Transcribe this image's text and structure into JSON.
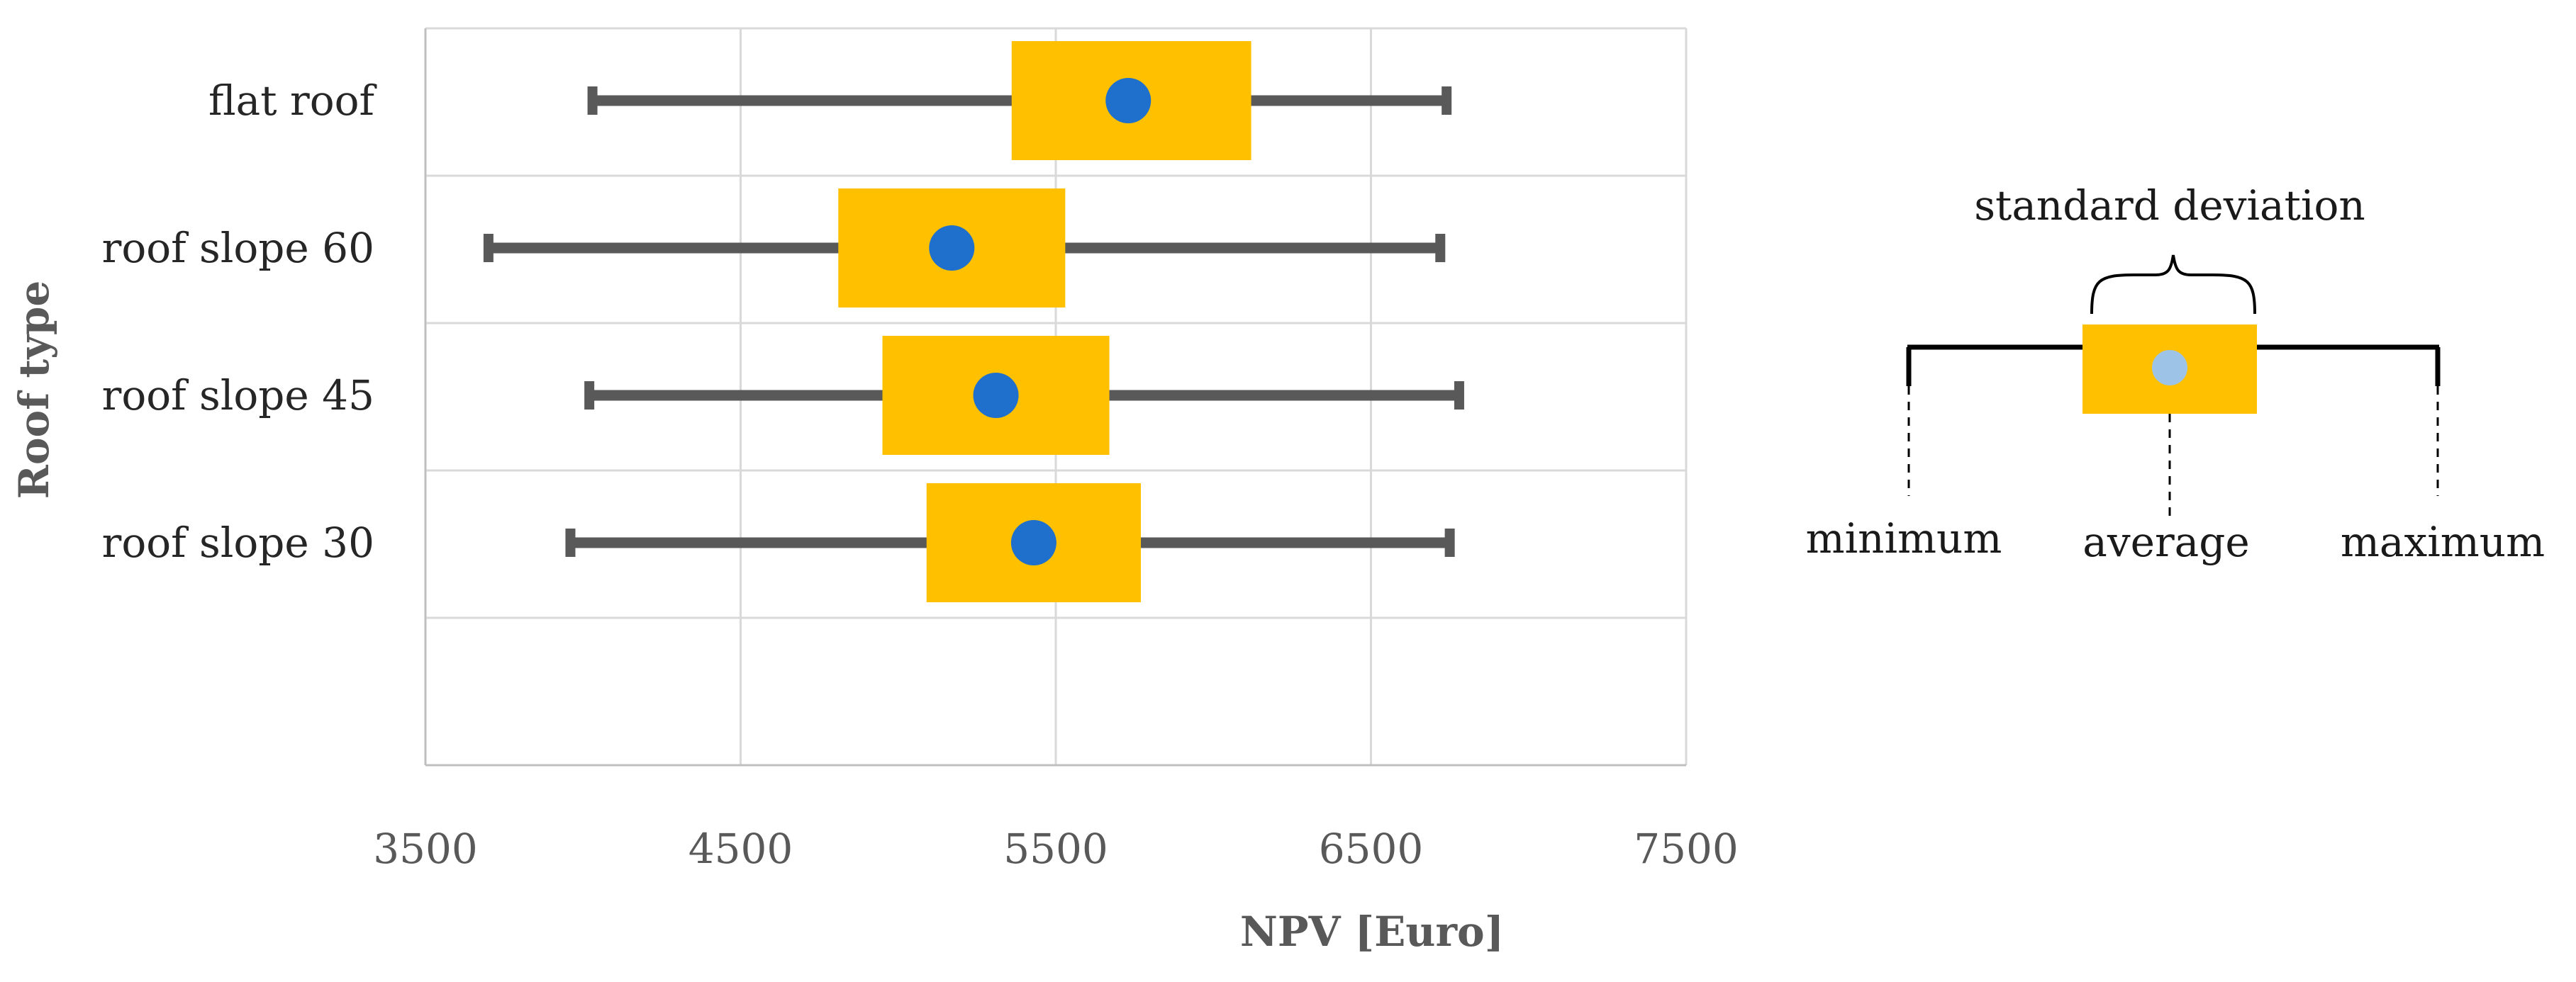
{
  "colors": {
    "box": "#FFC000",
    "mean_dot": "#1F6FCC",
    "whisker": "#595959",
    "grid": "#D9D9D9",
    "legend_dot": "#9DC3E6",
    "legend_line": "#000000"
  },
  "chart_data": {
    "type": "boxplot-horizontal",
    "title": "",
    "xlabel": "NPV [Euro]",
    "ylabel": "Roof type",
    "xlim": [
      3500,
      7500
    ],
    "xticks": [
      "3500",
      "4500",
      "5500",
      "6500",
      "7500"
    ],
    "grid": true,
    "categories": [
      "flat roof",
      "roof slope 60",
      "roof slope 45",
      "roof slope 30"
    ],
    "series": [
      {
        "category": "flat roof",
        "min": 4030,
        "std_low": 5360,
        "mean": 5730,
        "std_high": 6120,
        "max": 6740
      },
      {
        "category": "roof slope 60",
        "min": 3700,
        "std_low": 4810,
        "mean": 5170,
        "std_high": 5530,
        "max": 6720
      },
      {
        "category": "roof slope 45",
        "min": 4020,
        "std_low": 4950,
        "mean": 5310,
        "std_high": 5670,
        "max": 6780
      },
      {
        "category": "roof slope 30",
        "min": 3960,
        "std_low": 5090,
        "mean": 5430,
        "std_high": 5770,
        "max": 6750
      }
    ]
  },
  "legend": {
    "standard_deviation": "standard deviation",
    "minimum": "minimum",
    "average": "average",
    "maximum": "maximum"
  }
}
